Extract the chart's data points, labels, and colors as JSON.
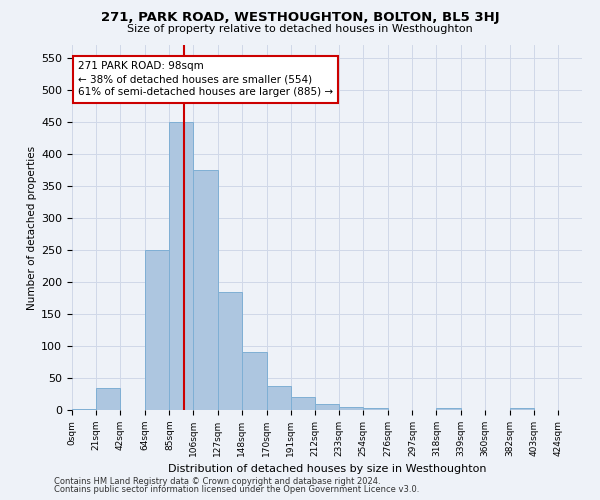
{
  "title": "271, PARK ROAD, WESTHOUGHTON, BOLTON, BL5 3HJ",
  "subtitle": "Size of property relative to detached houses in Westhoughton",
  "xlabel": "Distribution of detached houses by size in Westhoughton",
  "ylabel": "Number of detached properties",
  "footnote1": "Contains HM Land Registry data © Crown copyright and database right 2024.",
  "footnote2": "Contains public sector information licensed under the Open Government Licence v3.0.",
  "bar_left_edges": [
    0,
    21,
    42,
    64,
    85,
    106,
    127,
    148,
    170,
    191,
    212,
    233,
    254,
    276,
    297,
    318,
    339,
    360,
    382,
    403
  ],
  "bar_heights": [
    2,
    35,
    0,
    250,
    450,
    375,
    185,
    90,
    38,
    20,
    10,
    5,
    3,
    0,
    0,
    3,
    0,
    0,
    3,
    0
  ],
  "bar_widths": [
    21,
    21,
    22,
    21,
    21,
    21,
    21,
    22,
    21,
    21,
    21,
    21,
    22,
    21,
    21,
    21,
    21,
    22,
    21,
    21
  ],
  "tick_labels": [
    "0sqm",
    "21sqm",
    "42sqm",
    "64sqm",
    "85sqm",
    "106sqm",
    "127sqm",
    "148sqm",
    "170sqm",
    "191sqm",
    "212sqm",
    "233sqm",
    "254sqm",
    "276sqm",
    "297sqm",
    "318sqm",
    "339sqm",
    "360sqm",
    "382sqm",
    "403sqm",
    "424sqm"
  ],
  "tick_positions": [
    0,
    21,
    42,
    64,
    85,
    106,
    127,
    148,
    170,
    191,
    212,
    233,
    254,
    276,
    297,
    318,
    339,
    360,
    382,
    403,
    424
  ],
  "bar_color": "#adc6e0",
  "bar_edge_color": "#7fafd4",
  "vline_x": 98,
  "vline_color": "#cc0000",
  "annotation_line1": "271 PARK ROAD: 98sqm",
  "annotation_line2": "← 38% of detached houses are smaller (554)",
  "annotation_line3": "61% of semi-detached houses are larger (885) →",
  "annotation_box_color": "#ffffff",
  "annotation_box_edge_color": "#cc0000",
  "ylim": [
    0,
    570
  ],
  "yticks": [
    0,
    50,
    100,
    150,
    200,
    250,
    300,
    350,
    400,
    450,
    500,
    550
  ],
  "xlim": [
    0,
    445
  ],
  "grid_color": "#d0d8e8",
  "background_color": "#eef2f8"
}
